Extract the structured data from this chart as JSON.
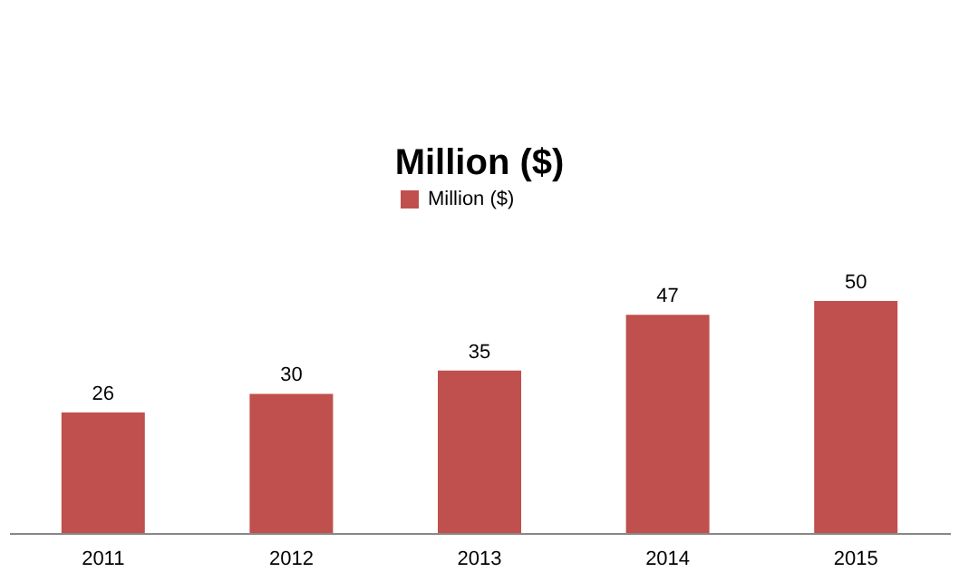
{
  "chart_data": {
    "type": "bar",
    "title": "Million ($)",
    "categories": [
      "2011",
      "2012",
      "2013",
      "2014",
      "2015"
    ],
    "series": [
      {
        "name": "Million ($)",
        "color": "#c0504d",
        "values": [
          26,
          30,
          35,
          47,
          50
        ]
      }
    ],
    "tick_labels": "x",
    "data_labels": true,
    "grid": false,
    "legend": "top"
  }
}
